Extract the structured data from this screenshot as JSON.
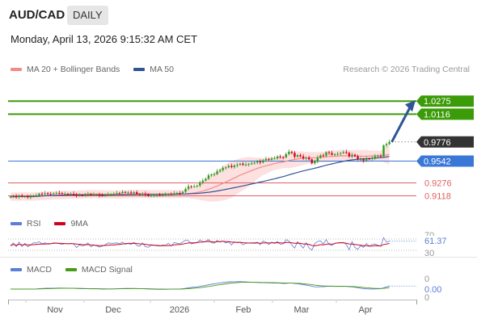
{
  "header": {
    "symbol": "AUD/CAD",
    "timeframe": "DAILY",
    "datetime": "Monday, April 13, 2026 9:15:32 AM CET"
  },
  "credit": "Research © 2026 Trading Central",
  "price_legend": [
    {
      "label": "MA 20 + Bollinger Bands",
      "color": "#f28b8b"
    },
    {
      "label": "MA 50",
      "color": "#2f5597"
    }
  ],
  "rsi_legend": [
    {
      "label": "RSI",
      "color": "#5b7fd6"
    },
    {
      "label": "9MA",
      "color": "#d0021b"
    }
  ],
  "macd_legend": [
    {
      "label": "MACD",
      "color": "#5b7fd6"
    },
    {
      "label": "MACD Signal",
      "color": "#4a9a1a"
    }
  ],
  "price_labels": [
    {
      "text": "1.0275",
      "kind": "resistance"
    },
    {
      "text": "1.0116",
      "kind": "resistance"
    },
    {
      "text": "0.9776",
      "kind": "last"
    },
    {
      "text": "0.9542",
      "kind": "pivot"
    },
    {
      "text": "0.9276",
      "kind": "support"
    },
    {
      "text": "0.9118",
      "kind": "support"
    }
  ],
  "rsi_labels": {
    "tick_top": "70",
    "value": "61.37",
    "tick_bottom": "30"
  },
  "macd_labels": {
    "tick_top": "0",
    "value": "0.00",
    "tick_bottom": "0"
  },
  "x_axis": [
    "Nov",
    "Dec",
    "2026",
    "Feb",
    "Mar",
    "Apr"
  ],
  "colors": {
    "resistance": "#3b9b08",
    "support": "#e06060",
    "pivot": "#3a78d8",
    "last": "#333333",
    "up_candle": "#2e9c1e",
    "down_candle": "#d0021b",
    "band_fill": "#fde0e0",
    "arrow": "#2f5597"
  },
  "chart_data": {
    "type": "candlestick",
    "title": "AUD/CAD",
    "timeframe": "DAILY",
    "last_price": 0.9776,
    "levels": {
      "resistance": [
        1.0275,
        1.0116
      ],
      "pivot": 0.9542,
      "support": [
        0.9276,
        0.9118
      ]
    },
    "projection": {
      "from": 0.9776,
      "to": 1.0275,
      "direction": "up"
    },
    "close_series": [
      0.9106,
      0.9112,
      0.9102,
      0.9118,
      0.9108,
      0.9111,
      0.91,
      0.9108,
      0.9117,
      0.9123,
      0.9143,
      0.914,
      0.9148,
      0.9141,
      0.9139,
      0.9148,
      0.9153,
      0.9151,
      0.9143,
      0.9143,
      0.9139,
      0.9142,
      0.9138,
      0.9119,
      0.9126,
      0.9125,
      0.9132,
      0.9139,
      0.9128,
      0.9134,
      0.9134,
      0.9121,
      0.9118,
      0.9129,
      0.9136,
      0.9139,
      0.9142,
      0.915,
      0.9149,
      0.9165,
      0.9158,
      0.9158,
      0.9149,
      0.9161,
      0.9141,
      0.9136,
      0.9142,
      0.9132,
      0.9116,
      0.912,
      0.9125,
      0.9125,
      0.9122,
      0.9131,
      0.9135,
      0.914,
      0.9137,
      0.9148,
      0.9152,
      0.9149,
      0.9166,
      0.9202,
      0.9233,
      0.923,
      0.9234,
      0.9243,
      0.9282,
      0.9303,
      0.9326,
      0.9368,
      0.9379,
      0.9383,
      0.9416,
      0.9431,
      0.9459,
      0.9465,
      0.9483,
      0.9468,
      0.9488,
      0.9497,
      0.951,
      0.9497,
      0.95,
      0.9506,
      0.9514,
      0.9524,
      0.9537,
      0.9525,
      0.9552,
      0.9568,
      0.9558,
      0.9574,
      0.9575,
      0.9598,
      0.959,
      0.9587,
      0.9628,
      0.9657,
      0.9643,
      0.9595,
      0.9614,
      0.96,
      0.9575,
      0.9584,
      0.9563,
      0.9516,
      0.9538,
      0.9583,
      0.9612,
      0.9608,
      0.965,
      0.9641,
      0.962,
      0.9625,
      0.9632,
      0.964,
      0.9652,
      0.9642,
      0.96,
      0.962,
      0.9602,
      0.9564,
      0.9565,
      0.9548,
      0.9572,
      0.9568,
      0.9582,
      0.96,
      0.9606,
      0.96,
      0.9734,
      0.975,
      0.9776
    ],
    "ylim": [
      0.905,
      1.03
    ],
    "rsi": {
      "value": 61.37,
      "levels": [
        70,
        30
      ]
    },
    "macd": {
      "value": 0.0
    }
  }
}
